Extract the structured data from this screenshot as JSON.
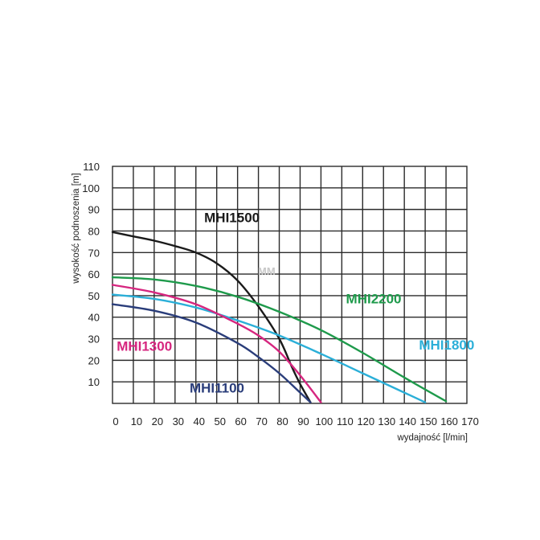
{
  "chart_data": {
    "type": "line",
    "title": "",
    "xlabel": "wydajność [l/min]",
    "ylabel": "wysokość podnoszenia [m]",
    "xlim": [
      0,
      170
    ],
    "ylim": [
      0,
      110
    ],
    "xticks": [
      0,
      10,
      20,
      30,
      40,
      50,
      60,
      70,
      80,
      90,
      100,
      110,
      120,
      130,
      140,
      150,
      160,
      170
    ],
    "yticks": [
      10,
      20,
      30,
      40,
      50,
      60,
      70,
      80,
      90,
      100,
      110
    ],
    "grid": true,
    "watermark": "MM",
    "series": [
      {
        "name": "MHI1500",
        "color": "#1a1a1a",
        "points": [
          [
            0,
            79.5
          ],
          [
            10,
            77.5
          ],
          [
            20,
            75.5
          ],
          [
            30,
            73
          ],
          [
            40,
            70
          ],
          [
            50,
            65
          ],
          [
            60,
            57
          ],
          [
            70,
            45
          ],
          [
            80,
            30
          ],
          [
            86,
            17
          ],
          [
            90,
            9
          ],
          [
            95,
            0.5
          ]
        ],
        "label_at": [
          44,
          84
        ]
      },
      {
        "name": "MHI2200",
        "color": "#1e9a4b",
        "points": [
          [
            0,
            58.5
          ],
          [
            20,
            57.5
          ],
          [
            40,
            54.5
          ],
          [
            60,
            49.5
          ],
          [
            80,
            42.5
          ],
          [
            100,
            34
          ],
          [
            120,
            23.5
          ],
          [
            140,
            12
          ],
          [
            160,
            1
          ]
        ],
        "label_at": [
          112,
          46.5
        ]
      },
      {
        "name": "MHI1800",
        "color": "#2bafd8",
        "points": [
          [
            0,
            50.5
          ],
          [
            20,
            48.5
          ],
          [
            40,
            44.5
          ],
          [
            60,
            38.5
          ],
          [
            80,
            31.5
          ],
          [
            100,
            23
          ],
          [
            120,
            14
          ],
          [
            140,
            5
          ],
          [
            150,
            0.5
          ]
        ],
        "label_at": [
          147,
          25
        ]
      },
      {
        "name": "MHI1300",
        "color": "#d6267f",
        "points": [
          [
            0,
            55
          ],
          [
            20,
            51.5
          ],
          [
            40,
            46
          ],
          [
            60,
            37
          ],
          [
            70,
            31.5
          ],
          [
            80,
            24
          ],
          [
            90,
            13
          ],
          [
            100,
            0.5
          ]
        ],
        "label_at": [
          2,
          24.5
        ]
      },
      {
        "name": "MHI1100",
        "color": "#2a3d7a",
        "points": [
          [
            0,
            46
          ],
          [
            20,
            43
          ],
          [
            40,
            37.5
          ],
          [
            60,
            28
          ],
          [
            70,
            21.5
          ],
          [
            80,
            14
          ],
          [
            90,
            5
          ],
          [
            95,
            0.5
          ]
        ],
        "label_at": [
          37,
          5
        ]
      }
    ]
  }
}
